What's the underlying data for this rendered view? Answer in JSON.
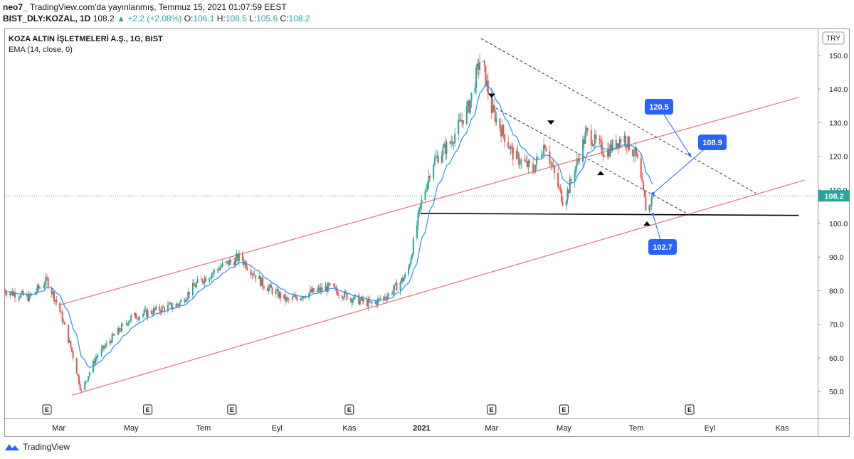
{
  "header": {
    "author": "neo7_",
    "published": "TradingView.com'da yayınlanmış, Temmuz 15, 2021 01:07:59 EEST",
    "symbol": "BIST_DLY:KOZAL, 1D",
    "last": "108.2",
    "change": "+2.2 (+2.08%)",
    "o_label": "O:",
    "o_value": "106.1",
    "h_label": "H:",
    "h_value": "108.5",
    "l_label": "L:",
    "l_value": "105.6",
    "c_label": "C:",
    "c_value": "108.2"
  },
  "legend": {
    "title": "KOZA ALTIN İŞLETMELERİ A.Ş., 1G, BIST",
    "indicator": "EMA (14, close, 0)"
  },
  "currency": "TRY",
  "price_tag": "108.2",
  "footer": {
    "brand": "TradingView"
  },
  "colors": {
    "up": "#26a69a",
    "down": "#ef5350",
    "ema": "#2196f3",
    "channel": "#e57373",
    "label_bg": "#2962ff",
    "grid": "#d1d4dc",
    "text": "#131722"
  },
  "chart_data": {
    "type": "candlestick",
    "time_range": [
      "2020-01-15",
      "2021-07-15"
    ],
    "ylim": [
      42,
      158
    ],
    "yticks": [
      50,
      60,
      70,
      80,
      90,
      100,
      110,
      120,
      130,
      140,
      150
    ],
    "ytick_labels": [
      "50.0",
      "60.0",
      "70.0",
      "80.0",
      "90.0",
      "100.0",
      "110.0",
      "120.0",
      "130.0",
      "140.0",
      "150.0"
    ],
    "xticks": [
      {
        "date": "2020-03-01",
        "label": "Mar",
        "bold": false
      },
      {
        "date": "2020-05-01",
        "label": "May",
        "bold": false
      },
      {
        "date": "2020-07-01",
        "label": "Tem",
        "bold": false
      },
      {
        "date": "2020-09-01",
        "label": "Eyl",
        "bold": false
      },
      {
        "date": "2020-11-01",
        "label": "Kas",
        "bold": false
      },
      {
        "date": "2021-01-01",
        "label": "2021",
        "bold": true
      },
      {
        "date": "2021-03-01",
        "label": "Mar",
        "bold": false
      },
      {
        "date": "2021-05-01",
        "label": "May",
        "bold": false
      },
      {
        "date": "2021-07-01",
        "label": "Tem",
        "bold": false
      },
      {
        "date": "2021-09-01",
        "label": "Eyl",
        "bold": false
      },
      {
        "date": "2021-11-01",
        "label": "Kas",
        "bold": false
      }
    ],
    "price_path": [
      [
        "2020-01-15",
        80
      ],
      [
        "2020-02-05",
        78
      ],
      [
        "2020-02-20",
        83
      ],
      [
        "2020-03-01",
        75
      ],
      [
        "2020-03-12",
        62
      ],
      [
        "2020-03-20",
        50
      ],
      [
        "2020-04-01",
        60
      ],
      [
        "2020-04-15",
        66
      ],
      [
        "2020-05-01",
        72
      ],
      [
        "2020-05-20",
        74
      ],
      [
        "2020-06-10",
        76
      ],
      [
        "2020-06-25",
        82
      ],
      [
        "2020-07-15",
        87
      ],
      [
        "2020-08-01",
        90
      ],
      [
        "2020-08-20",
        82
      ],
      [
        "2020-09-10",
        77
      ],
      [
        "2020-09-25",
        79
      ],
      [
        "2020-10-15",
        81
      ],
      [
        "2020-11-01",
        78
      ],
      [
        "2020-11-20",
        76
      ],
      [
        "2020-12-05",
        79
      ],
      [
        "2020-12-20",
        85
      ],
      [
        "2020-12-31",
        105
      ],
      [
        "2021-01-10",
        118
      ],
      [
        "2021-01-25",
        124
      ],
      [
        "2021-02-10",
        135
      ],
      [
        "2021-02-20",
        150
      ],
      [
        "2021-03-01",
        134
      ],
      [
        "2021-03-20",
        120
      ],
      [
        "2021-04-05",
        116
      ],
      [
        "2021-04-15",
        124
      ],
      [
        "2021-04-25",
        112
      ],
      [
        "2021-05-01",
        106
      ],
      [
        "2021-05-10",
        116
      ],
      [
        "2021-05-20",
        127
      ],
      [
        "2021-06-05",
        121
      ],
      [
        "2021-06-20",
        126
      ],
      [
        "2021-07-01",
        120
      ],
      [
        "2021-07-10",
        103
      ],
      [
        "2021-07-15",
        108.2
      ]
    ],
    "lines": [
      {
        "name": "channel-upper",
        "from": [
          "2020-03-01",
          75.7
        ],
        "to": [
          "2021-11-15",
          137.5
        ]
      },
      {
        "name": "channel-lower",
        "from": [
          "2020-03-12",
          48.9
        ],
        "to": [
          "2021-11-20",
          112.9
        ]
      },
      {
        "name": "support",
        "from": [
          "2020-12-31",
          103
        ],
        "to": [
          "2021-11-15",
          102.4
        ]
      },
      {
        "name": "resistance-1",
        "from": [
          "2021-02-20",
          155
        ],
        "to": [
          "2021-10-10",
          109
        ]
      },
      {
        "name": "resistance-2",
        "from": [
          "2021-03-01",
          135
        ],
        "to": [
          "2021-08-15",
          102.5
        ]
      }
    ],
    "annotations": [
      {
        "label": "120.5",
        "anchor": [
          "2021-08-15",
          120.5
        ]
      },
      {
        "label": "108.9",
        "anchor": [
          "2021-07-15",
          108.9
        ]
      },
      {
        "label": "102.7",
        "anchor": [
          "2021-07-15",
          102.7
        ]
      }
    ],
    "markers": [
      {
        "type": "down",
        "date": "2021-03-01",
        "price": 138
      },
      {
        "type": "down",
        "date": "2021-04-20",
        "price": 130
      },
      {
        "type": "up",
        "date": "2021-06-01",
        "price": 115
      },
      {
        "type": "up",
        "date": "2021-07-10",
        "price": 100
      }
    ],
    "events": [
      "2020-02-20",
      "2020-05-15",
      "2020-07-25",
      "2020-11-01",
      "2021-03-01",
      "2021-05-01",
      "2021-08-15"
    ],
    "event_label": "E",
    "last_price_line": 108.2,
    "axis_label_bold": "2021"
  }
}
